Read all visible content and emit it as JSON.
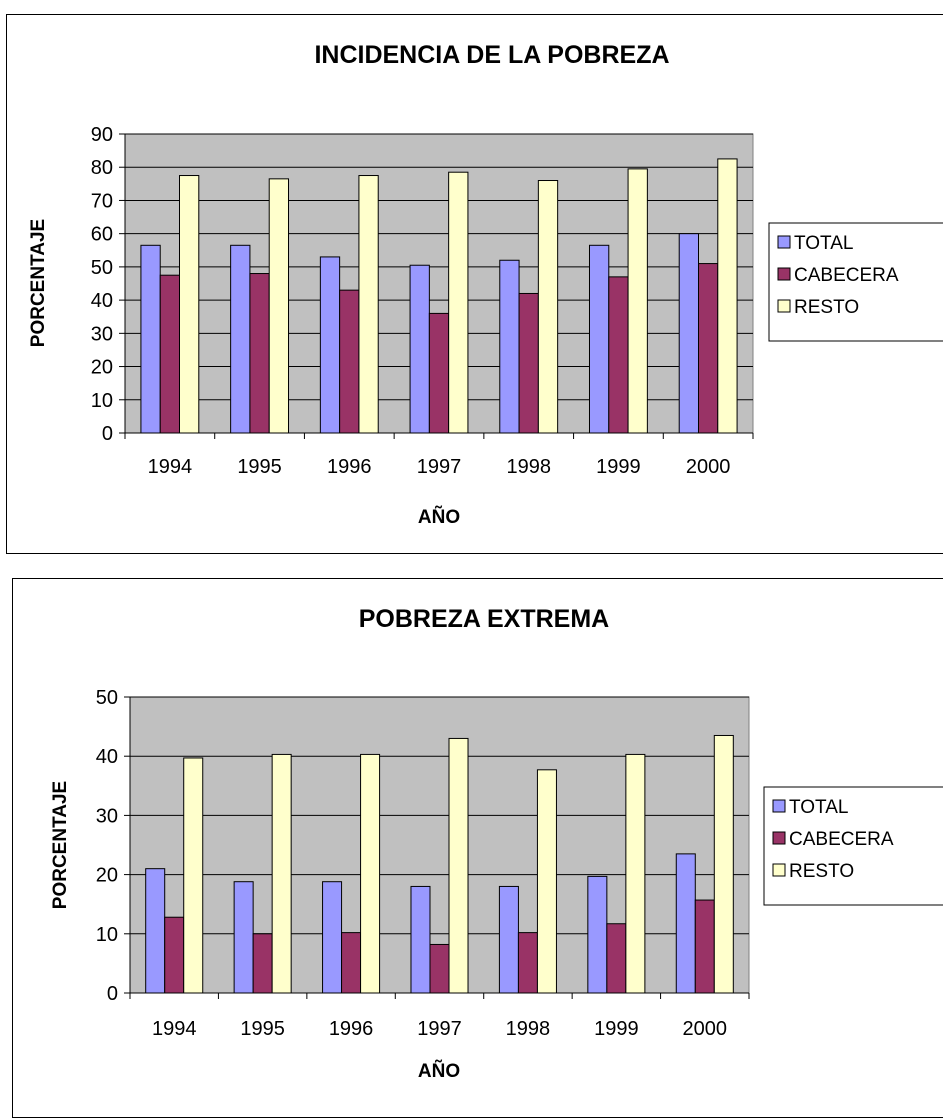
{
  "chart_data": [
    {
      "type": "bar",
      "title": "INCIDENCIA DE LA POBREZA",
      "xlabel": "AÑO",
      "ylabel": "PORCENTAJE",
      "categories": [
        "1994",
        "1995",
        "1996",
        "1997",
        "1998",
        "1999",
        "2000"
      ],
      "ylim": [
        0,
        90
      ],
      "yticks": [
        0,
        10,
        20,
        30,
        40,
        50,
        60,
        70,
        80,
        90
      ],
      "grid": true,
      "legend_position": "right",
      "series": [
        {
          "name": "TOTAL",
          "color": "#9999ff",
          "values": [
            56.5,
            56.5,
            53,
            50.5,
            52,
            56.5,
            60
          ]
        },
        {
          "name": "CABECERA",
          "color": "#993366",
          "values": [
            47.5,
            48,
            43,
            36,
            42,
            47,
            51
          ]
        },
        {
          "name": "RESTO",
          "color": "#ffffcc",
          "values": [
            77.5,
            76.5,
            77.5,
            78.5,
            76,
            79.5,
            82.5
          ]
        }
      ],
      "plot_background": "#c0c0c0"
    },
    {
      "type": "bar",
      "title": "POBREZA EXTREMA",
      "xlabel": "AÑO",
      "ylabel": "PORCENTAJE",
      "categories": [
        "1994",
        "1995",
        "1996",
        "1997",
        "1998",
        "1999",
        "2000"
      ],
      "ylim": [
        0,
        50
      ],
      "yticks": [
        0,
        10,
        20,
        30,
        40,
        50
      ],
      "grid": true,
      "legend_position": "right",
      "series": [
        {
          "name": "TOTAL",
          "color": "#9999ff",
          "values": [
            21,
            18.8,
            18.8,
            18,
            18,
            19.7,
            23.5
          ]
        },
        {
          "name": "CABECERA",
          "color": "#993366",
          "values": [
            12.8,
            10,
            10.2,
            8.2,
            10.2,
            11.7,
            15.7
          ]
        },
        {
          "name": "RESTO",
          "color": "#ffffcc",
          "values": [
            39.7,
            40.3,
            40.3,
            43,
            37.7,
            40.3,
            43.5
          ]
        }
      ],
      "plot_background": "#c0c0c0"
    }
  ]
}
